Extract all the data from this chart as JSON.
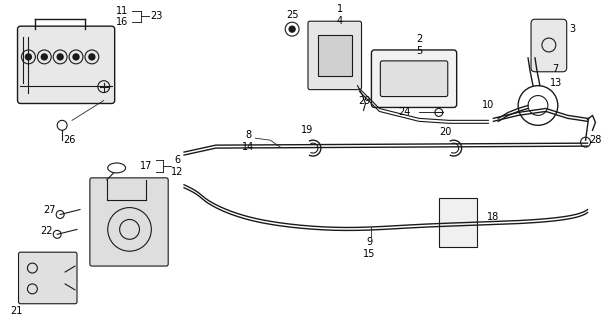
{
  "bg_color": "#ffffff",
  "line_color": "#1a1a1a",
  "fig_width": 6.11,
  "fig_height": 3.2,
  "dpi": 100
}
